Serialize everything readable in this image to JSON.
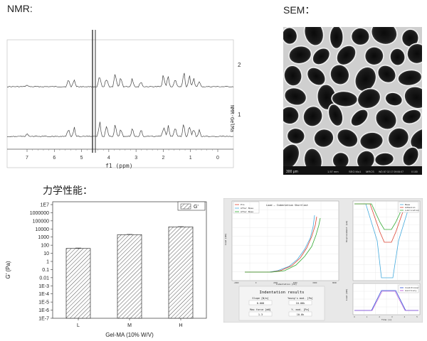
{
  "labels": {
    "nmr": "NMR:",
    "sem": "SEM：",
    "mech": "力学性能："
  },
  "nmr": {
    "xlabel": "f1 (ppm)",
    "ylabel": "NMR-GelMa",
    "x_ticks": [
      "7",
      "6",
      "5",
      "4",
      "3",
      "2",
      "1",
      "0"
    ],
    "trace_labels": [
      "2",
      "1"
    ]
  },
  "sem": {
    "scalebar": "300 μm",
    "info": [
      "1.57 mm",
      "SEG Mo1",
      "MRCS",
      "WD 87 02 17 09:06:07",
      "0 100"
    ]
  },
  "chart_data": [
    {
      "type": "bar",
      "categories": [
        "L",
        "M",
        "H"
      ],
      "values": [
        40,
        2000,
        18000
      ],
      "errors": [
        5,
        150,
        1500
      ],
      "series": [
        {
          "name": "G'",
          "values": [
            40,
            2000,
            18000
          ]
        }
      ],
      "ylabel": "G' (Pa)",
      "xlabel": "Gel-MA (10% W/V)",
      "yscale": "log",
      "ylim": [
        1e-07,
        10000000.0
      ],
      "y_ticks": [
        "1E7",
        "1000000",
        "100000",
        "10000",
        "1000",
        "100",
        "10",
        "1",
        "0.1",
        "0.01",
        "1E-3",
        "1E-4",
        "1E-5",
        "1E-6",
        "1E-7"
      ],
      "legend_position": "top-right",
      "bar_pattern": "hatched"
    }
  ],
  "indentation": {
    "plot_title": "Load – Indentation Shortlast",
    "legend_left": [
      "Pre",
      "After Base",
      "After Base"
    ],
    "legend_right": [
      "Base",
      "Adhesion",
      "Lubrication"
    ],
    "panel_title": "Indentation results",
    "headers_row1": [
      "Slope [N/m]",
      "Young's mod. [Pa]"
    ],
    "values_row1": [
      "0.000",
      "10.00k"
    ],
    "headers_row2": [
      "Max force [mN]",
      "Y. mod. [Pa]"
    ],
    "values_row2": [
      "1.3",
      "10.0k"
    ],
    "left_ylabel": "Load [mN]",
    "left_xlabel": "Indentation [nm]",
    "right_ylabel_top": "Displacement [um]",
    "right_ylabel_bottom": "Load [mN]",
    "right_xlabel": "Time [s]",
    "legend_bottom": [
      "Conditioner",
      "Auxiliary"
    ],
    "x_ticks_left": [
      "-2000",
      "0",
      "2000",
      "4000",
      "6000",
      "8000"
    ],
    "x_ticks_right": [
      "0",
      "1",
      "2",
      "3",
      "4",
      "5"
    ]
  }
}
